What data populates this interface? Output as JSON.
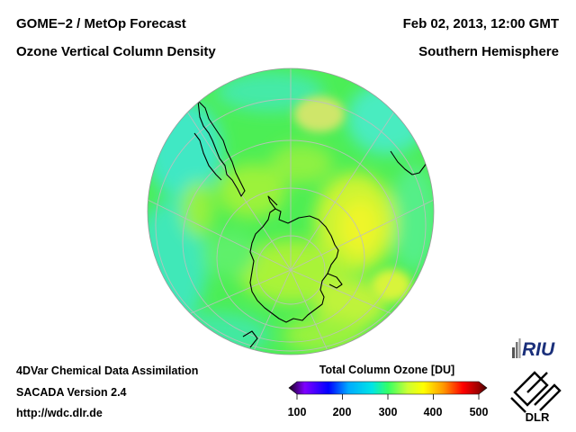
{
  "header": {
    "title_left": "GOME−2 / MetOp Forecast",
    "subtitle_left": "Ozone Vertical Column Density",
    "title_right": "Feb 02, 2013, 12:00 GMT",
    "subtitle_right": "Southern Hemisphere"
  },
  "footer": {
    "line1": "4DVar Chemical Data Assimilation",
    "line2": "SACADA Version 2.4",
    "line3": "http://wdc.dlr.de"
  },
  "colorbar": {
    "title": "Total Column Ozone [DU]",
    "ticks": [
      "100",
      "200",
      "300",
      "400",
      "500"
    ],
    "colors": [
      "#000000",
      "#7f00ff",
      "#0000ff",
      "#00aaff",
      "#00e5e5",
      "#33ff66",
      "#ccff33",
      "#ffff00",
      "#ff9900",
      "#ff0000",
      "#990000",
      "#3a0000"
    ]
  },
  "logos": {
    "riu": "RIU",
    "dlr": "DLR"
  },
  "map": {
    "projection": "orthographic south polar",
    "field_colors": {
      "base": "#4cee55",
      "cyan": "#41e8c4",
      "light_green": "#a5f337",
      "yellow": "#e6f52a",
      "graticule": "#bfbfbf",
      "coast": "#000000"
    }
  }
}
